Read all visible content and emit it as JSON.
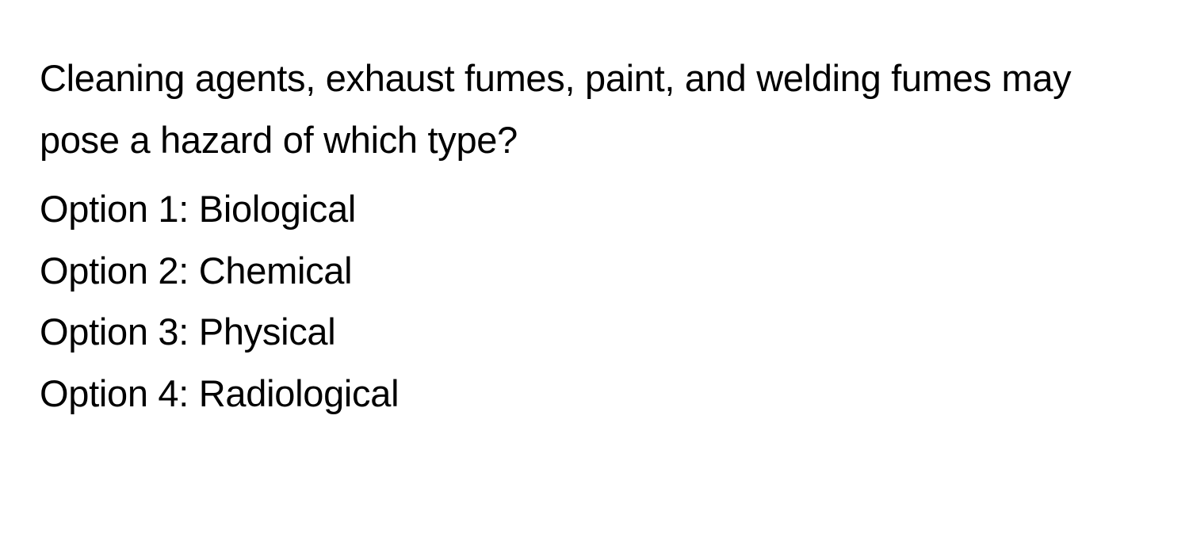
{
  "question": {
    "text": "Cleaning agents, exhaust fumes, paint, and welding fumes may pose a hazard of which type?",
    "options": [
      {
        "label": "Option 1: Biological"
      },
      {
        "label": "Option 2: Chemical"
      },
      {
        "label": "Option 3: Physical"
      },
      {
        "label": "Option 4: Radiological"
      }
    ]
  },
  "styling": {
    "background_color": "#ffffff",
    "text_color": "#000000",
    "font_size": 47,
    "line_height": 1.65,
    "font_weight": 400
  }
}
